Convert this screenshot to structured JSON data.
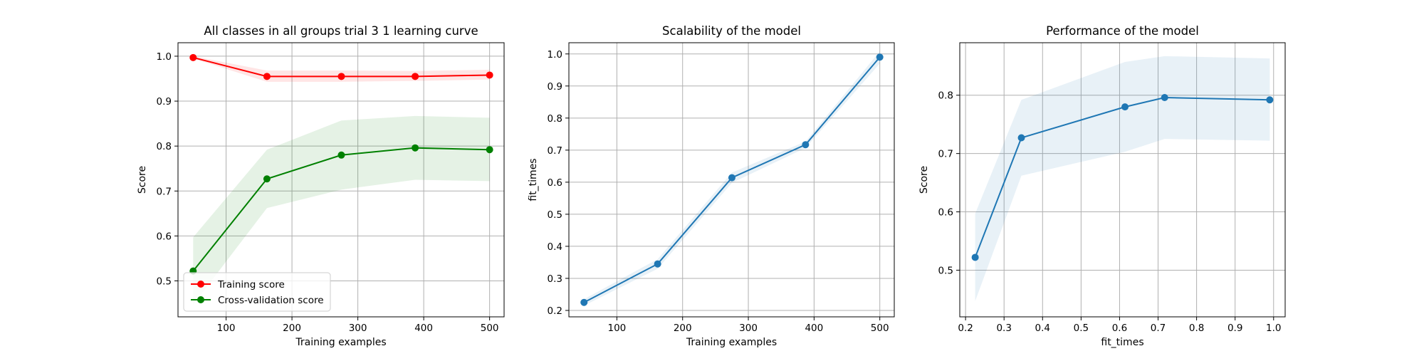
{
  "chart_data": [
    {
      "type": "line",
      "title": "All classes in all groups trial 3 1 learning curve",
      "xlabel": "Training examples",
      "ylabel": "Score",
      "xlim": [
        27,
        522
      ],
      "ylim": [
        0.42,
        1.03
      ],
      "xticks": [
        100,
        200,
        300,
        400,
        500
      ],
      "yticks": [
        0.5,
        0.6,
        0.7,
        0.8,
        0.9,
        1.0
      ],
      "xtick_labels": [
        "100",
        "200",
        "300",
        "400",
        "500"
      ],
      "ytick_labels": [
        "0.5",
        "0.6",
        "0.7",
        "0.8",
        "0.9",
        "1.0"
      ],
      "grid": true,
      "legend_position": "lower-left",
      "x": [
        50,
        162,
        275,
        387,
        500
      ],
      "series": [
        {
          "name": "Training score",
          "color": "#ff0000",
          "values": [
            0.997,
            0.955,
            0.955,
            0.955,
            0.958
          ],
          "band_low": [
            0.995,
            0.943,
            0.943,
            0.945,
            0.948
          ],
          "band_high": [
            1.0,
            0.968,
            0.968,
            0.967,
            0.97
          ]
        },
        {
          "name": "Cross-validation score",
          "color": "#008000",
          "values": [
            0.522,
            0.727,
            0.78,
            0.796,
            0.792
          ],
          "band_low": [
            0.447,
            0.662,
            0.703,
            0.725,
            0.722
          ],
          "band_high": [
            0.597,
            0.792,
            0.857,
            0.867,
            0.863
          ]
        }
      ]
    },
    {
      "type": "line",
      "title": "Scalability of the model",
      "xlabel": "Training examples",
      "ylabel": "fit_times",
      "xlim": [
        27,
        522
      ],
      "ylim": [
        0.18,
        1.035
      ],
      "xticks": [
        100,
        200,
        300,
        400,
        500
      ],
      "yticks": [
        0.2,
        0.3,
        0.4,
        0.5,
        0.6,
        0.7,
        0.8,
        0.9,
        1.0
      ],
      "xtick_labels": [
        "100",
        "200",
        "300",
        "400",
        "500"
      ],
      "ytick_labels": [
        "0.2",
        "0.3",
        "0.4",
        "0.5",
        "0.6",
        "0.7",
        "0.8",
        "0.9",
        "1.0"
      ],
      "grid": true,
      "x": [
        50,
        162,
        275,
        387,
        500
      ],
      "series": [
        {
          "color": "#1f77b4",
          "values": [
            0.225,
            0.345,
            0.614,
            0.717,
            0.99
          ],
          "band_low": [
            0.215,
            0.33,
            0.598,
            0.707,
            0.97
          ],
          "band_high": [
            0.235,
            0.36,
            0.63,
            0.727,
            1.008
          ]
        }
      ]
    },
    {
      "type": "line",
      "title": "Performance of the model",
      "xlabel": "fit_times",
      "ylabel": "Score",
      "xlim": [
        0.185,
        1.03
      ],
      "ylim": [
        0.42,
        0.89
      ],
      "xticks": [
        0.2,
        0.3,
        0.4,
        0.5,
        0.6,
        0.7,
        0.8,
        0.9,
        1.0
      ],
      "yticks": [
        0.5,
        0.6,
        0.7,
        0.8
      ],
      "xtick_labels": [
        "0.2",
        "0.3",
        "0.4",
        "0.5",
        "0.6",
        "0.7",
        "0.8",
        "0.9",
        "1.0"
      ],
      "ytick_labels": [
        "0.5",
        "0.6",
        "0.7",
        "0.8"
      ],
      "grid": true,
      "x": [
        0.225,
        0.345,
        0.614,
        0.717,
        0.99
      ],
      "series": [
        {
          "color": "#1f77b4",
          "values": [
            0.522,
            0.727,
            0.78,
            0.796,
            0.792
          ],
          "band_low": [
            0.447,
            0.662,
            0.703,
            0.725,
            0.722
          ],
          "band_high": [
            0.597,
            0.792,
            0.857,
            0.867,
            0.863
          ]
        }
      ]
    }
  ]
}
